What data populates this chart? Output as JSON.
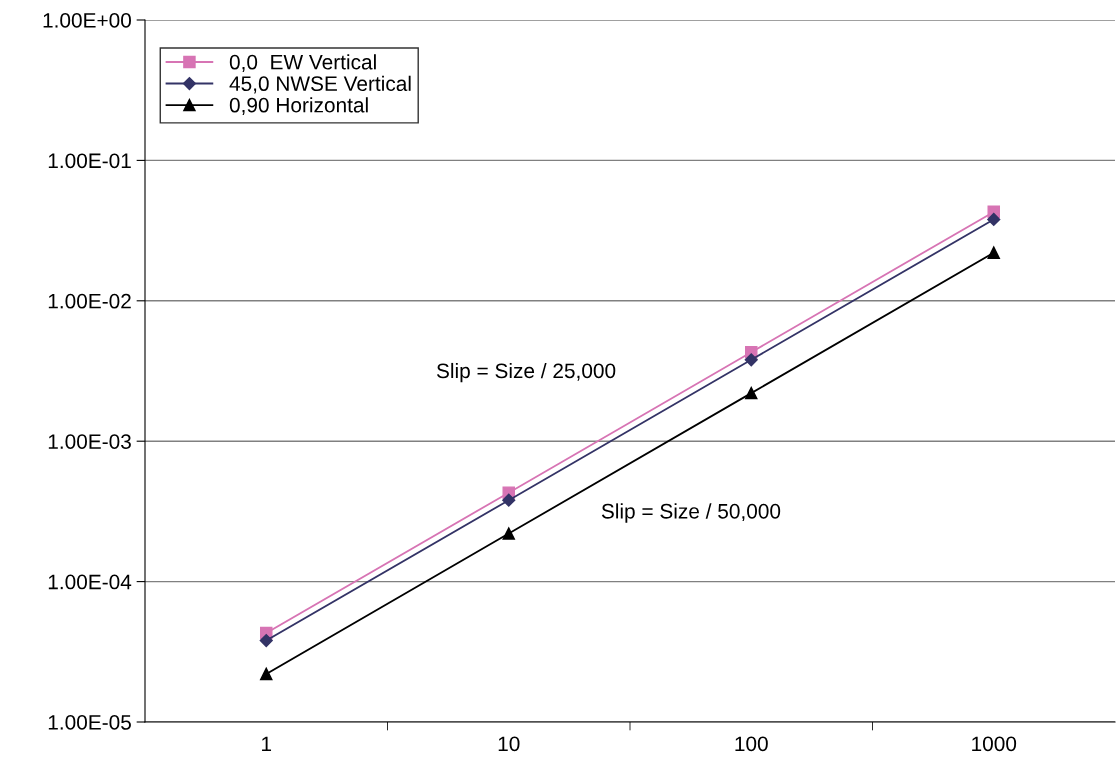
{
  "chart_data": {
    "type": "line",
    "categories": [
      "1",
      "10",
      "100",
      "1000"
    ],
    "series": [
      {
        "name": "0,0  EW Vertical",
        "color": "#d774b4",
        "marker": "square",
        "values": [
          4.3e-05,
          0.00043,
          0.0043,
          0.043
        ]
      },
      {
        "name": "45,0 NWSE Vertical",
        "color": "#333366",
        "marker": "diamond",
        "values": [
          3.8e-05,
          0.00038,
          0.0038,
          0.038
        ]
      },
      {
        "name": "0,90 Horizontal",
        "color": "#000000",
        "marker": "triangle",
        "values": [
          2.2e-05,
          0.00022,
          0.0022,
          0.022
        ]
      }
    ],
    "log": "y",
    "ylim": [
      1e-05,
      1
    ],
    "yticks": [
      {
        "value": 1e-05,
        "label": "1.00E-05"
      },
      {
        "value": 0.0001,
        "label": "1.00E-04"
      },
      {
        "value": 0.001,
        "label": "1.00E-03"
      },
      {
        "value": 0.01,
        "label": "1.00E-02"
      },
      {
        "value": 0.1,
        "label": "1.00E-01"
      },
      {
        "value": 1,
        "label": "1.00E+00"
      }
    ],
    "grid": "y",
    "legend": "top left",
    "line_style": "solid",
    "annotations": [
      "Slip = Size / 25,000",
      "Slip = Size / 50,000"
    ]
  }
}
